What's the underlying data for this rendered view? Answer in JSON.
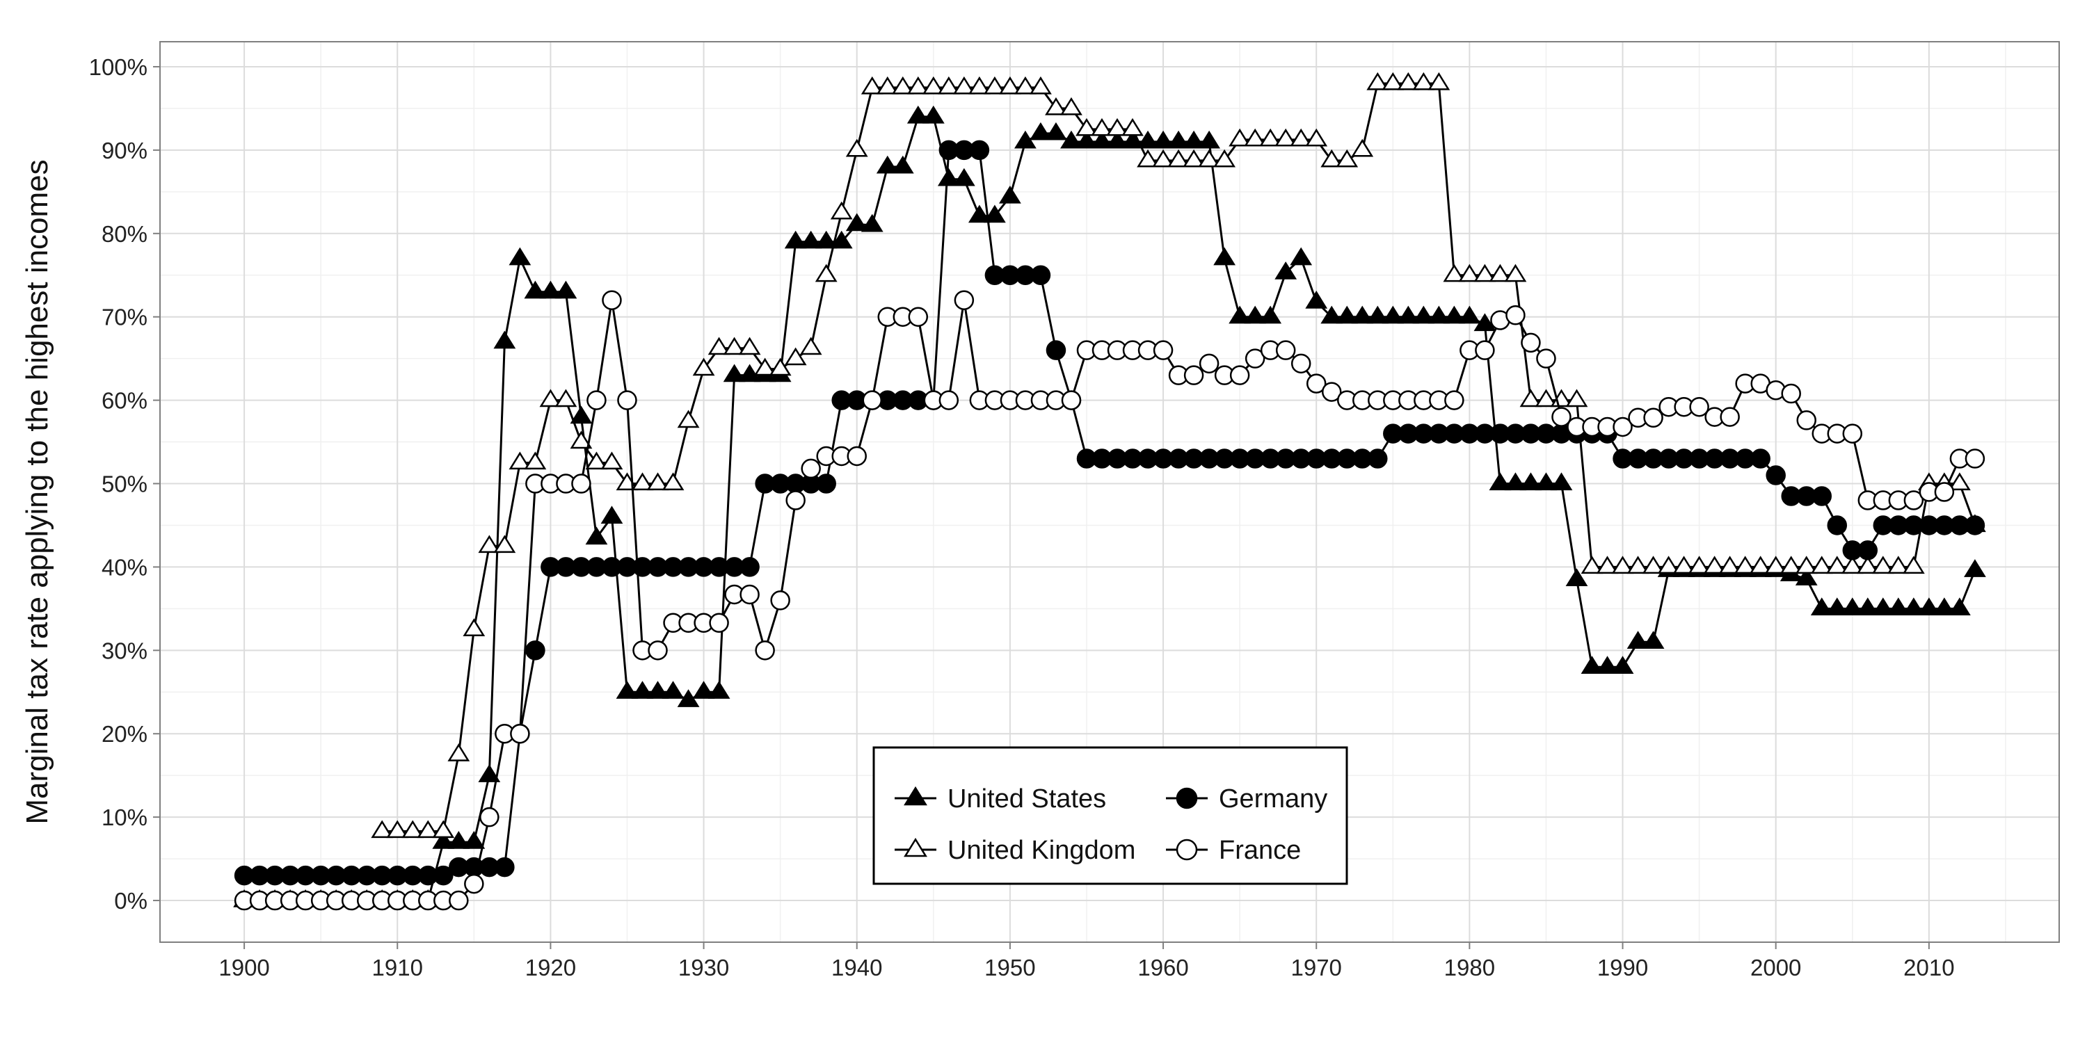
{
  "chart_data": {
    "type": "line",
    "title": "",
    "xlabel": "",
    "ylabel": "Marginal tax rate applying to the highest incomes",
    "xlim": [
      1894.5,
      2018.5
    ],
    "ylim": [
      -5,
      103
    ],
    "x_ticks": [
      "1900",
      "1910",
      "1920",
      "1930",
      "1940",
      "1950",
      "1960",
      "1970",
      "1980",
      "1990",
      "2000",
      "2010"
    ],
    "x_tick_values": [
      1900,
      1910,
      1920,
      1930,
      1940,
      1950,
      1960,
      1970,
      1980,
      1990,
      2000,
      2010
    ],
    "y_ticks": [
      "0%",
      "10%",
      "20%",
      "30%",
      "40%",
      "50%",
      "60%",
      "70%",
      "80%",
      "90%",
      "100%"
    ],
    "y_tick_values": [
      0,
      10,
      20,
      30,
      40,
      50,
      60,
      70,
      80,
      90,
      100
    ],
    "grid": true,
    "legend": {
      "position": "bottom-center",
      "columns": 2
    },
    "series": [
      {
        "name": "United States",
        "marker": "filled-triangle",
        "color": "#000000",
        "x": [
          1900,
          1901,
          1902,
          1903,
          1904,
          1905,
          1906,
          1907,
          1908,
          1909,
          1910,
          1911,
          1912,
          1913,
          1914,
          1915,
          1916,
          1917,
          1918,
          1919,
          1920,
          1921,
          1922,
          1923,
          1924,
          1925,
          1926,
          1927,
          1928,
          1929,
          1930,
          1931,
          1932,
          1933,
          1934,
          1935,
          1936,
          1937,
          1938,
          1939,
          1940,
          1941,
          1942,
          1943,
          1944,
          1945,
          1946,
          1947,
          1948,
          1949,
          1950,
          1951,
          1952,
          1953,
          1954,
          1955,
          1956,
          1957,
          1958,
          1959,
          1960,
          1961,
          1962,
          1963,
          1964,
          1965,
          1966,
          1967,
          1968,
          1969,
          1970,
          1971,
          1972,
          1973,
          1974,
          1975,
          1976,
          1977,
          1978,
          1979,
          1980,
          1981,
          1982,
          1983,
          1984,
          1985,
          1986,
          1987,
          1988,
          1989,
          1990,
          1991,
          1992,
          1993,
          1994,
          1995,
          1996,
          1997,
          1998,
          1999,
          2000,
          2001,
          2002,
          2003,
          2004,
          2005,
          2006,
          2007,
          2008,
          2009,
          2010,
          2011,
          2012,
          2013
        ],
        "y": [
          0,
          0,
          0,
          0,
          0,
          0,
          0,
          0,
          0,
          0,
          0,
          0,
          0,
          7,
          7,
          7,
          15,
          67,
          77,
          73,
          73,
          73,
          58,
          43.5,
          46,
          25,
          25,
          25,
          25,
          24,
          25,
          25,
          63,
          63,
          63,
          63,
          79,
          79,
          79,
          79,
          81.1,
          81,
          88,
          88,
          94,
          94,
          86.5,
          86.5,
          82.1,
          82.1,
          84.4,
          91,
          92,
          92,
          91,
          91,
          91,
          91,
          91,
          91,
          91,
          91,
          91,
          91,
          77,
          70,
          70,
          70,
          75.3,
          77,
          71.8,
          70,
          70,
          70,
          70,
          70,
          70,
          70,
          70,
          70,
          70,
          69.1,
          50,
          50,
          50,
          50,
          50,
          38.5,
          28,
          28,
          28,
          31,
          31,
          39.6,
          39.6,
          39.6,
          39.6,
          39.6,
          39.6,
          39.6,
          39.6,
          39.1,
          38.6,
          35,
          35,
          35,
          35,
          35,
          35,
          35,
          35,
          35,
          35,
          39.6
        ]
      },
      {
        "name": "United Kingdom",
        "marker": "open-triangle",
        "color": "#000000",
        "x": [
          1909,
          1910,
          1911,
          1912,
          1913,
          1914,
          1915,
          1916,
          1917,
          1918,
          1919,
          1920,
          1921,
          1922,
          1923,
          1924,
          1925,
          1926,
          1927,
          1928,
          1929,
          1930,
          1931,
          1932,
          1933,
          1934,
          1935,
          1936,
          1937,
          1938,
          1939,
          1940,
          1941,
          1942,
          1943,
          1944,
          1945,
          1946,
          1947,
          1948,
          1949,
          1950,
          1951,
          1952,
          1953,
          1954,
          1955,
          1956,
          1957,
          1958,
          1959,
          1960,
          1961,
          1962,
          1963,
          1964,
          1965,
          1966,
          1967,
          1968,
          1969,
          1970,
          1971,
          1972,
          1973,
          1974,
          1975,
          1976,
          1977,
          1978,
          1979,
          1980,
          1981,
          1982,
          1983,
          1984,
          1985,
          1986,
          1987,
          1988,
          1989,
          1990,
          1991,
          1992,
          1993,
          1994,
          1995,
          1996,
          1997,
          1998,
          1999,
          2000,
          2001,
          2002,
          2003,
          2004,
          2005,
          2006,
          2007,
          2008,
          2009,
          2010,
          2011,
          2012,
          2013
        ],
        "y": [
          8.3,
          8.3,
          8.3,
          8.3,
          8.3,
          17.5,
          32.5,
          42.5,
          42.5,
          52.5,
          52.5,
          60,
          60,
          55,
          52.5,
          52.5,
          50,
          50,
          50,
          50,
          57.5,
          63.75,
          66.25,
          66.25,
          66.25,
          63.75,
          63.75,
          65,
          66.25,
          75,
          82.5,
          90,
          97.5,
          97.5,
          97.5,
          97.5,
          97.5,
          97.5,
          97.5,
          97.5,
          97.5,
          97.5,
          97.5,
          97.5,
          95,
          95,
          92.5,
          92.5,
          92.5,
          92.5,
          88.75,
          88.75,
          88.75,
          88.75,
          88.75,
          88.75,
          91.25,
          91.25,
          91.25,
          91.25,
          91.25,
          91.25,
          88.75,
          88.75,
          90,
          98,
          98,
          98,
          98,
          98,
          75,
          75,
          75,
          75,
          75,
          60,
          60,
          60,
          60,
          40,
          40,
          40,
          40,
          40,
          40,
          40,
          40,
          40,
          40,
          40,
          40,
          40,
          40,
          40,
          40,
          40,
          40,
          40,
          40,
          40,
          40,
          50,
          50,
          50,
          45
        ]
      },
      {
        "name": "Germany",
        "marker": "filled-circle",
        "color": "#000000",
        "x": [
          1900,
          1901,
          1902,
          1903,
          1904,
          1905,
          1906,
          1907,
          1908,
          1909,
          1910,
          1911,
          1912,
          1913,
          1914,
          1915,
          1916,
          1917,
          1918,
          1919,
          1920,
          1921,
          1922,
          1923,
          1924,
          1925,
          1926,
          1927,
          1928,
          1929,
          1930,
          1931,
          1932,
          1933,
          1934,
          1935,
          1936,
          1937,
          1938,
          1939,
          1940,
          1941,
          1942,
          1943,
          1944,
          1945,
          1946,
          1947,
          1948,
          1949,
          1950,
          1951,
          1952,
          1953,
          1954,
          1955,
          1956,
          1957,
          1958,
          1959,
          1960,
          1961,
          1962,
          1963,
          1964,
          1965,
          1966,
          1967,
          1968,
          1969,
          1970,
          1971,
          1972,
          1973,
          1974,
          1975,
          1976,
          1977,
          1978,
          1979,
          1980,
          1981,
          1982,
          1983,
          1984,
          1985,
          1986,
          1987,
          1988,
          1989,
          1990,
          1991,
          1992,
          1993,
          1994,
          1995,
          1996,
          1997,
          1998,
          1999,
          2000,
          2001,
          2002,
          2003,
          2004,
          2005,
          2006,
          2007,
          2008,
          2009,
          2010,
          2011,
          2012,
          2013
        ],
        "y": [
          3,
          3,
          3,
          3,
          3,
          3,
          3,
          3,
          3,
          3,
          3,
          3,
          3,
          3,
          4,
          4,
          4,
          4,
          20,
          30,
          40,
          40,
          40,
          40,
          40,
          40,
          40,
          40,
          40,
          40,
          40,
          40,
          40,
          40,
          50,
          50,
          50,
          50,
          50,
          60,
          60,
          60,
          60,
          60,
          60,
          60,
          90,
          90,
          90,
          75,
          75,
          75,
          75,
          66,
          60,
          53,
          53,
          53,
          53,
          53,
          53,
          53,
          53,
          53,
          53,
          53,
          53,
          53,
          53,
          53,
          53,
          53,
          53,
          53,
          53,
          56,
          56,
          56,
          56,
          56,
          56,
          56,
          56,
          56,
          56,
          56,
          56,
          56,
          56,
          56,
          53,
          53,
          53,
          53,
          53,
          53,
          53,
          53,
          53,
          53,
          51,
          48.5,
          48.5,
          48.5,
          45,
          42,
          42,
          45,
          45,
          45,
          45,
          45,
          45,
          45
        ]
      },
      {
        "name": "France",
        "marker": "open-circle",
        "color": "#000000",
        "x": [
          1900,
          1901,
          1902,
          1903,
          1904,
          1905,
          1906,
          1907,
          1908,
          1909,
          1910,
          1911,
          1912,
          1913,
          1914,
          1915,
          1916,
          1917,
          1918,
          1919,
          1920,
          1921,
          1922,
          1923,
          1924,
          1925,
          1926,
          1927,
          1928,
          1929,
          1930,
          1931,
          1932,
          1933,
          1934,
          1935,
          1936,
          1937,
          1938,
          1939,
          1940,
          1941,
          1942,
          1943,
          1944,
          1945,
          1946,
          1947,
          1948,
          1949,
          1950,
          1951,
          1952,
          1953,
          1954,
          1955,
          1956,
          1957,
          1958,
          1959,
          1960,
          1961,
          1962,
          1963,
          1964,
          1965,
          1966,
          1967,
          1968,
          1969,
          1970,
          1971,
          1972,
          1973,
          1974,
          1975,
          1976,
          1977,
          1978,
          1979,
          1980,
          1981,
          1982,
          1983,
          1984,
          1985,
          1986,
          1987,
          1988,
          1989,
          1990,
          1991,
          1992,
          1993,
          1994,
          1995,
          1996,
          1997,
          1998,
          1999,
          2000,
          2001,
          2002,
          2003,
          2004,
          2005,
          2006,
          2007,
          2008,
          2009,
          2010,
          2011,
          2012,
          2013
        ],
        "y": [
          0,
          0,
          0,
          0,
          0,
          0,
          0,
          0,
          0,
          0,
          0,
          0,
          0,
          0,
          0,
          2,
          10,
          20,
          20,
          50,
          50,
          50,
          50,
          60,
          72,
          60,
          30,
          30,
          33.3,
          33.3,
          33.3,
          33.3,
          36.7,
          36.7,
          30,
          36,
          48,
          51.8,
          53.3,
          53.3,
          53.3,
          60,
          70,
          70,
          70,
          60,
          60,
          72,
          60,
          60,
          60,
          60,
          60,
          60,
          60,
          66,
          66,
          66,
          66,
          66,
          66,
          63,
          63,
          64.4,
          63,
          63,
          65,
          66,
          66,
          64.4,
          62,
          61,
          60,
          60,
          60,
          60,
          60,
          60,
          60,
          60,
          66,
          66,
          69.6,
          70.2,
          66.9,
          65,
          58,
          56.8,
          56.8,
          56.8,
          56.8,
          57.9,
          57.9,
          59.2,
          59.2,
          59.2,
          58,
          58,
          62,
          62,
          61.2,
          60.8,
          57.6,
          56,
          56,
          56,
          48,
          48,
          48,
          48,
          49,
          49,
          53,
          53
        ]
      }
    ]
  }
}
